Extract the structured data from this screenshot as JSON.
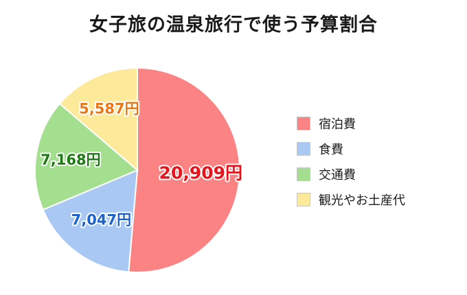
{
  "chart_data": {
    "type": "pie",
    "title": "女子旅の温泉旅行で使う予算割合",
    "unit": "円",
    "categories": [
      "宿泊費",
      "食費",
      "交通費",
      "観光やお土産代"
    ],
    "values": [
      20909,
      7047,
      7168,
      5587
    ],
    "labels": [
      "20,909円",
      "7,047円",
      "7,168円",
      "5,587円"
    ],
    "colors": [
      "#fc8383",
      "#a9c8f4",
      "#a3df8f",
      "#fde99a"
    ],
    "label_colors": [
      "#e8121a",
      "#1d63c9",
      "#1e7a12",
      "#e8781a"
    ],
    "legend_position": "right"
  }
}
